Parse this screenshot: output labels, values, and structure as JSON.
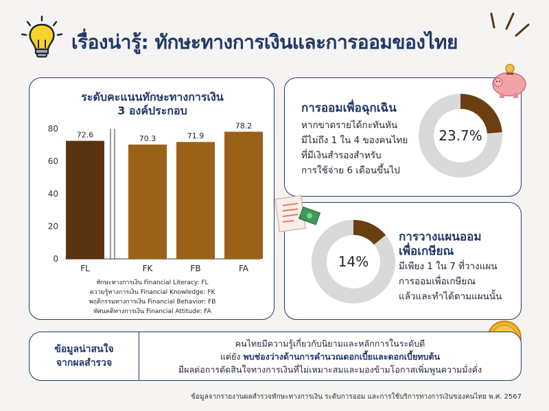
{
  "header": {
    "title": "เรื่องน่ารู้: ทักษะทางการเงินและการออมของไทย"
  },
  "chart_data": {
    "type": "bar",
    "title": "ระดับคะแนนทักษะทางการเงิน",
    "subtitle": "3 องค์ประกอบ",
    "categories": [
      "FL",
      "FK",
      "FB",
      "FA"
    ],
    "values": [
      72.6,
      70.3,
      71.9,
      78.2
    ],
    "value_labels": [
      "72.6",
      "70.3",
      "71.9",
      "78.2"
    ],
    "ylim": [
      0,
      80
    ],
    "yticks": [
      "0",
      "20",
      "40",
      "60",
      "80"
    ],
    "colors": [
      "#5a3410",
      "#9a6219",
      "#9a6219",
      "#9a6219"
    ],
    "grid": false
  },
  "legend": [
    "ทักษะทางการเงิน Financial Literacy: FL",
    "ความรู้ทางการเงิน Financial Knowledge: FK",
    "พฤติกรรมทางการเงิน Financial Behavior: FB",
    "ทัศนคติทางการเงิน Financial Attitude: FA"
  ],
  "emergency": {
    "title": "การออมเพื่อฉุกเฉิน",
    "lines": [
      "หากขาดรายได้กะทันหัน",
      "มีไม่ถึง 1 ใน 4 ของคนไทย",
      "ที่มีเงินสำรองสำหรับ",
      "การใช้จ่าย 6 เดือนขึ้นไป"
    ],
    "value": 23.7,
    "value_label": "23.7%"
  },
  "retirement": {
    "title_lines": [
      "การวางแผนออม",
      "เพื่อเกษียณ"
    ],
    "lines": [
      "มีเพียง 1 ใน 7 ที่วางแผน",
      "การออมเพื่อเกษียณ",
      "แล้วและทำได้ตามแผนนั้น"
    ],
    "value": 14,
    "value_label": "14%"
  },
  "insight": {
    "head_lines": [
      "ข้อมูลน่าสนใจ",
      "จากผลสำรวจ"
    ],
    "line1": "คนไทยมีความรู้เกี่ยวกับนิยามและหลักการในระดับดี",
    "line2_prefix": "แต่ยัง ",
    "line2_highlight": "พบช่องว่างด้านการคำนวณดอกเบี้ยและดอกเบี้ยทบต้น",
    "line3": "มีผลต่อการตัดสินใจทางการเงินที่ไม่เหมาะสมและมองข้ามโอกาสเพิ่มพูนความมั่งคั่ง"
  },
  "source": "ข้อมูลจากรายงานผลสำรวจทักษะทางการเงิน ระดับการออม และการใช้บริการทางการเงินของคนไทย พ.ศ. 2567",
  "colors": {
    "navy": "#1f3768",
    "bar_dark": "#5a3410",
    "bar": "#9a6219",
    "ring_bg": "#d9d9d9",
    "ring_fg": "#6b3f12"
  },
  "icons": [
    "lightbulb-icon",
    "piggy-bank-icon",
    "document-money-icon",
    "coin-icon"
  ]
}
